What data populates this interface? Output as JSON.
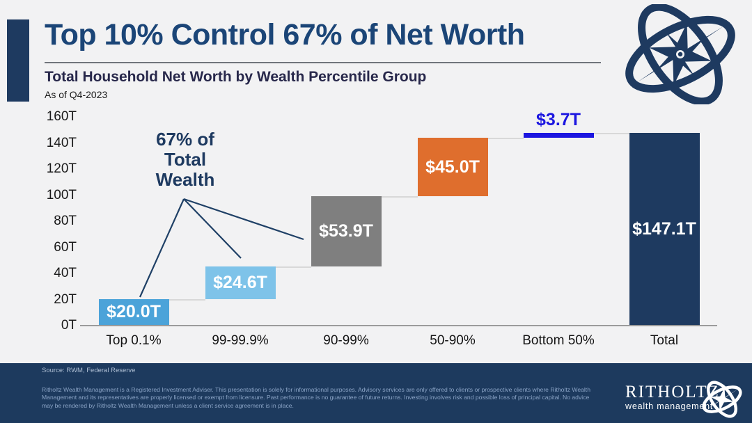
{
  "header": {
    "title": "Top 10% Control 67% of Net Worth",
    "subtitle": "Total Household Net Worth by Wealth Percentile Group",
    "as_of": "As of Q4-2023"
  },
  "chart_data": {
    "type": "bar",
    "subtype": "waterfall",
    "title": "Total Household Net Worth by Wealth Percentile Group",
    "categories": [
      "Top 0.1%",
      "99-99.9%",
      "90-99%",
      "50-90%",
      "Bottom 50%",
      "Total"
    ],
    "values": [
      20.0,
      24.6,
      53.9,
      45.0,
      3.7,
      147.1
    ],
    "bar_labels": [
      "$20.0T",
      "$24.6T",
      "$53.9T",
      "$45.0T",
      "$3.7T",
      "$147.1T"
    ],
    "bar_colors": [
      "#4ba3d9",
      "#7ec3e9",
      "#7f7f7f",
      "#df6e2d",
      "#1c16e0",
      "#1e3a60"
    ],
    "total_category": "Total",
    "unit": "trillions of US dollars",
    "y_ticks": [
      "0T",
      "20T",
      "40T",
      "60T",
      "80T",
      "100T",
      "120T",
      "140T",
      "160T"
    ],
    "ylim": [
      0,
      160
    ],
    "grid": "off",
    "annotation": {
      "lines": [
        "67% of",
        "Total",
        "Wealth"
      ],
      "points_to": [
        "Top 0.1%",
        "99-99.9%",
        "90-99%"
      ]
    }
  },
  "footer": {
    "source": "Source: RWM, Federal Reserve",
    "disclaimer_lines": [
      "Ritholtz Wealth Management is a Registered Investment Adviser. This presentation is solely for informational purposes. Advisory services are only offered to clients or prospective clients where Ritholtz Wealth",
      "Management and its representatives are properly licensed or exempt from licensure. Past performance is no guarantee of future returns. Investing involves risk and possible loss of principal capital. No advice",
      "may be rendered by Ritholtz Wealth Management unless a client service agreement is in place."
    ],
    "brand_name": "RITHOLTZ",
    "brand_sub": "wealth management"
  },
  "colors": {
    "background": "#f2f2f3",
    "navy": "#1e3a60",
    "title_blue": "#1b4577",
    "bright_blue": "#1c16e0",
    "footer_bg": "#1d3a5e"
  }
}
